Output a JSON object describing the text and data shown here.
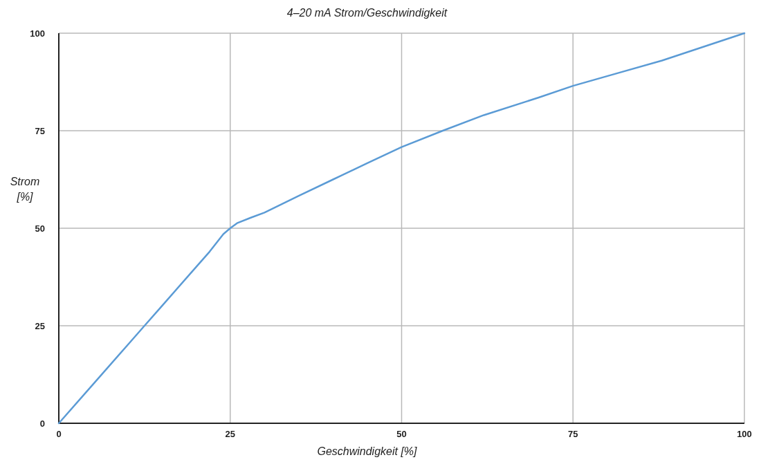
{
  "chart_data": {
    "type": "line",
    "title": "4–20 mA  Strom/Geschwindigkeit",
    "xlabel": "Geschwindigkeit  [%]",
    "ylabel": "Strom\n[%]",
    "x": [
      0,
      5,
      10,
      12.5,
      15,
      20,
      22,
      24,
      25,
      26,
      28,
      30,
      35,
      40,
      45,
      50,
      56,
      62,
      70,
      75,
      82,
      88,
      94,
      100
    ],
    "series": [
      {
        "color": "#5b9bd5",
        "values": [
          0,
          10,
          20,
          25,
          30,
          40,
          44,
          48.5,
          50,
          51.3,
          52.7,
          54,
          58.3,
          62.5,
          66.7,
          70.8,
          75,
          79,
          83.5,
          86.5,
          90,
          93,
          96.5,
          100
        ]
      }
    ],
    "xlim": [
      0,
      100
    ],
    "ylim": [
      0,
      100
    ],
    "xticks": [
      0,
      25,
      50,
      75,
      100
    ],
    "yticks": [
      0,
      25,
      50,
      75,
      100
    ],
    "grid": true,
    "marker": "none",
    "line_style": "solid"
  }
}
